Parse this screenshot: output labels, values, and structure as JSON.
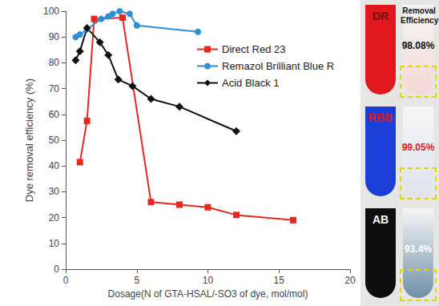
{
  "chart_data": {
    "type": "line",
    "x_label": "Dosage(N of GTA-HSAL/-SO3 of dye, mol/mol)",
    "y_label": "Dye removal efficiency (%)",
    "xlim": [
      0,
      20
    ],
    "xticks": [
      0,
      5,
      10,
      15,
      20
    ],
    "ylim": [
      0,
      100
    ],
    "yticks": [
      0,
      10,
      20,
      30,
      40,
      50,
      60,
      70,
      80,
      90,
      100
    ],
    "grid": false,
    "legend": "upper right",
    "series": [
      {
        "name": "Direct Red 23",
        "color": "#e8281e",
        "marker": "square",
        "line_style": "solid",
        "x": [
          1.0,
          1.5,
          2.0,
          4.0,
          6.0,
          8.0,
          10.0,
          12.0,
          16.0
        ],
        "values": [
          41.5,
          57.5,
          97,
          97.5,
          26,
          25,
          24,
          21,
          19
        ]
      },
      {
        "name": "Remazol Brilliant Blue R",
        "color": "#2e8fd6",
        "marker": "circle",
        "line_style": "solid",
        "x": [
          0.7,
          1.0,
          1.5,
          2.5,
          3.0,
          3.3,
          3.8,
          4.5,
          5.0,
          9.3
        ],
        "values": [
          90,
          91,
          93,
          97,
          98,
          99,
          100,
          99,
          94.5,
          92
        ]
      },
      {
        "name": "Acid Black 1",
        "color": "#111111",
        "marker": "diamond",
        "line_style": "solid",
        "x": [
          0.7,
          1.0,
          1.5,
          2.4,
          3.0,
          3.7,
          4.7,
          6.0,
          8.0,
          12.0
        ],
        "values": [
          81,
          84.5,
          93.5,
          88,
          83,
          73.5,
          71,
          66,
          63,
          53.5
        ]
      }
    ]
  },
  "panel": {
    "header": "Removal Efficiency",
    "samples": [
      {
        "label": "DR",
        "removal": "98.08%"
      },
      {
        "label": "RBB",
        "removal": "99.05%"
      },
      {
        "label": "AB",
        "removal": "93.4%"
      }
    ]
  }
}
